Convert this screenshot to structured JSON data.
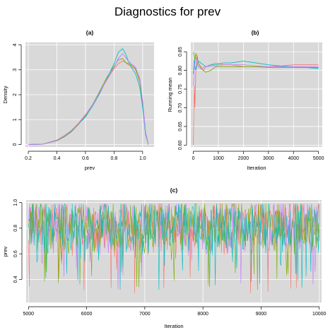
{
  "title": "Diagnostics for prev",
  "colors": {
    "series": [
      "#F8766D",
      "#7CAE00",
      "#00BFC4",
      "#C77CFF"
    ],
    "panel_background": "#d9d9d9",
    "grid": "#ffffff"
  },
  "chart_data": [
    {
      "panel": "(a)",
      "type": "line",
      "title": "(a)",
      "xlabel": "prev",
      "ylabel": "Density",
      "xlim": [
        0.18,
        1.08
      ],
      "ylim": [
        -0.1,
        4.1
      ],
      "xticks": [
        0.2,
        0.4,
        0.6,
        0.8,
        1.0
      ],
      "xtick_labels": [
        "0.2",
        "0.4",
        "0.6",
        "0.8",
        "1.0"
      ],
      "yticks": [
        0,
        1,
        2,
        3,
        4
      ],
      "ytick_labels": [
        "0",
        "1",
        "2",
        "3",
        "4"
      ],
      "grid": true,
      "legend": "none",
      "x": [
        0.2,
        0.3,
        0.4,
        0.45,
        0.5,
        0.55,
        0.6,
        0.65,
        0.7,
        0.75,
        0.8,
        0.83,
        0.86,
        0.88,
        0.9,
        0.92,
        0.95,
        0.98,
        1.0,
        1.02,
        1.04
      ],
      "series": [
        {
          "values": [
            0.0,
            0.01,
            0.18,
            0.35,
            0.55,
            0.85,
            1.2,
            1.6,
            2.1,
            2.6,
            3.05,
            3.25,
            3.35,
            3.3,
            3.2,
            3.15,
            3.0,
            2.6,
            1.7,
            0.5,
            0.0
          ]
        },
        {
          "values": [
            0.0,
            0.01,
            0.15,
            0.3,
            0.5,
            0.8,
            1.15,
            1.6,
            2.15,
            2.7,
            3.15,
            3.4,
            3.45,
            3.3,
            3.25,
            3.2,
            3.05,
            2.5,
            1.6,
            0.45,
            0.0
          ]
        },
        {
          "values": [
            0.0,
            0.01,
            0.16,
            0.32,
            0.55,
            0.82,
            1.1,
            1.55,
            2.05,
            2.65,
            3.25,
            3.7,
            3.85,
            3.65,
            3.35,
            3.1,
            2.85,
            2.3,
            1.5,
            0.4,
            0.0
          ]
        },
        {
          "values": [
            0.0,
            0.01,
            0.17,
            0.33,
            0.52,
            0.83,
            1.18,
            1.58,
            2.1,
            2.62,
            3.1,
            3.45,
            3.65,
            3.5,
            3.35,
            3.25,
            3.1,
            2.65,
            1.75,
            0.5,
            0.0
          ]
        }
      ]
    },
    {
      "panel": "(b)",
      "type": "line",
      "title": "(b)",
      "xlabel": "Iteration",
      "ylabel": "Running mean",
      "xlim": [
        -100,
        5150
      ],
      "ylim": [
        0.595,
        0.875
      ],
      "xticks": [
        0,
        1000,
        2000,
        3000,
        4000,
        5000
      ],
      "xtick_labels": [
        "0",
        "1000",
        "2000",
        "3000",
        "4000",
        "5000"
      ],
      "yticks": [
        0.6,
        0.65,
        0.7,
        0.75,
        0.8,
        0.85
      ],
      "ytick_labels": [
        "0.60",
        "0.65",
        "0.70",
        "0.75",
        "0.80",
        "0.85"
      ],
      "grid": true,
      "legend": "none",
      "x": [
        1,
        30,
        60,
        100,
        150,
        200,
        300,
        400,
        500,
        700,
        900,
        1200,
        1500,
        2000,
        2500,
        3000,
        3500,
        4000,
        4500,
        5000
      ],
      "series": [
        {
          "values": [
            0.6,
            0.76,
            0.7,
            0.8,
            0.84,
            0.82,
            0.81,
            0.8,
            0.81,
            0.815,
            0.82,
            0.815,
            0.815,
            0.81,
            0.81,
            0.81,
            0.812,
            0.815,
            0.815,
            0.815
          ]
        },
        {
          "values": [
            0.85,
            0.84,
            0.83,
            0.845,
            0.835,
            0.82,
            0.805,
            0.8,
            0.795,
            0.8,
            0.81,
            0.81,
            0.81,
            0.81,
            0.81,
            0.808,
            0.808,
            0.808,
            0.808,
            0.808
          ]
        },
        {
          "values": [
            0.79,
            0.83,
            0.81,
            0.8,
            0.815,
            0.825,
            0.82,
            0.815,
            0.81,
            0.815,
            0.815,
            0.82,
            0.82,
            0.825,
            0.82,
            0.815,
            0.812,
            0.81,
            0.808,
            0.805
          ]
        },
        {
          "values": [
            0.76,
            0.8,
            0.82,
            0.835,
            0.82,
            0.81,
            0.805,
            0.808,
            0.81,
            0.812,
            0.812,
            0.815,
            0.815,
            0.815,
            0.812,
            0.81,
            0.81,
            0.81,
            0.81,
            0.81
          ]
        }
      ]
    },
    {
      "panel": "(c)",
      "type": "line",
      "title": "(c)",
      "xlabel": "Iteration",
      "ylabel": "prev",
      "xlim": [
        4960,
        10040
      ],
      "ylim": [
        0.22,
        1.02
      ],
      "xticks": [
        5000,
        6000,
        7000,
        8000,
        9000,
        10000
      ],
      "xtick_labels": [
        "5000",
        "6000",
        "7000",
        "8000",
        "9000",
        "10000"
      ],
      "yticks": [
        0.4,
        0.6,
        0.8,
        1.0
      ],
      "ytick_labels": [
        "0.4",
        "0.6",
        "0.8",
        "1.0"
      ],
      "grid": true,
      "legend": "none",
      "trace_summary": {
        "iterations": [
          5001,
          10000
        ],
        "typical_range": [
          0.55,
          0.99
        ],
        "center": 0.82,
        "minimum": 0.26
      }
    }
  ]
}
